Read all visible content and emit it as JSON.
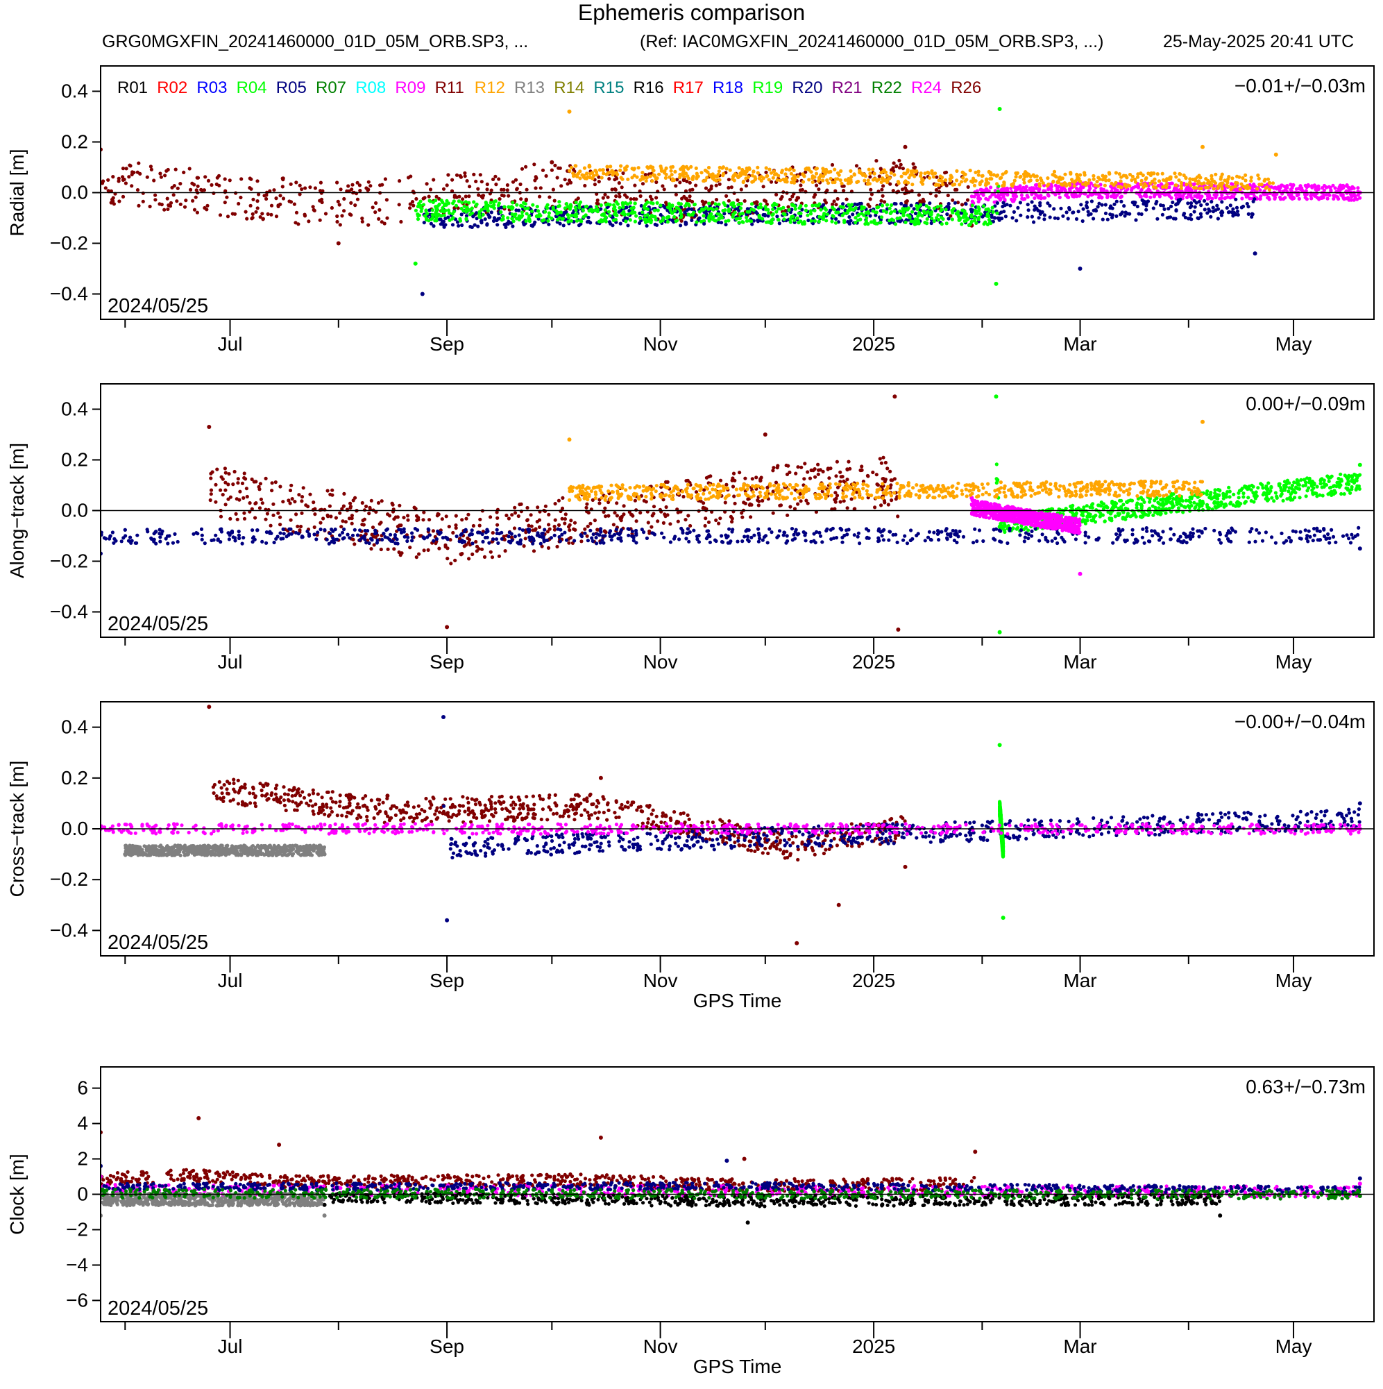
{
  "header": {
    "title": "Ephemeris comparison",
    "subtitle_left": "GRG0MGXFIN_20241460000_01D_05M_ORB.SP3, ...",
    "subtitle_right": "(Ref: IAC0MGXFIN_20241460000_01D_05M_ORB.SP3, ...)",
    "timestamp": "25-May-2025 20:41 UTC"
  },
  "legend": [
    {
      "name": "R01",
      "color": "#000000"
    },
    {
      "name": "R02",
      "color": "#ff0000"
    },
    {
      "name": "R03",
      "color": "#0000ff"
    },
    {
      "name": "R04",
      "color": "#00ff00"
    },
    {
      "name": "R05",
      "color": "#000080"
    },
    {
      "name": "R07",
      "color": "#008000"
    },
    {
      "name": "R08",
      "color": "#00ffff"
    },
    {
      "name": "R09",
      "color": "#ff00ff"
    },
    {
      "name": "R11",
      "color": "#800000"
    },
    {
      "name": "R12",
      "color": "#ffa500"
    },
    {
      "name": "R13",
      "color": "#808080"
    },
    {
      "name": "R14",
      "color": "#808000"
    },
    {
      "name": "R15",
      "color": "#008080"
    },
    {
      "name": "R16",
      "color": "#000000"
    },
    {
      "name": "R17",
      "color": "#ff0000"
    },
    {
      "name": "R18",
      "color": "#0000ff"
    },
    {
      "name": "R19",
      "color": "#00ff00"
    },
    {
      "name": "R20",
      "color": "#000080"
    },
    {
      "name": "R21",
      "color": "#800080"
    },
    {
      "name": "R22",
      "color": "#008000"
    },
    {
      "name": "R24",
      "color": "#ff00ff"
    },
    {
      "name": "R26",
      "color": "#800000"
    }
  ],
  "chart_data": [
    {
      "type": "scatter",
      "ylabel": "Radial [m]",
      "xlabel": "",
      "ylim": [
        -0.5,
        0.5
      ],
      "yticks": [
        -0.4,
        -0.2,
        0.0,
        0.2,
        0.4
      ],
      "ytick_labels": [
        "−0.4",
        "−0.2",
        "0.0",
        "0.2",
        "0.4"
      ],
      "xlim": [
        "2024-05-25",
        "2025-05-24"
      ],
      "xtick_labels": [
        "Jul",
        "Sep",
        "Nov",
        "2025",
        "Mar",
        "May"
      ],
      "stat": "−0.01+/−0.03m",
      "start_date": "2024/05/25",
      "grid": false,
      "series": [
        {
          "name": "R11",
          "color": "#800000",
          "spread": 0.09,
          "offset": 0.0,
          "x": [
            "2024-05-25",
            "2024-08-01",
            "2024-10-01",
            "2024-11-05",
            "2025-01-10",
            "2025-01-29"
          ],
          "y": [
            0.17,
            -0.2,
            0.12,
            -0.1,
            0.18,
            -0.13
          ]
        },
        {
          "name": "R09",
          "color": "#ff00ff",
          "spread": 0.03,
          "offset": 0.0,
          "x": [
            "2025-01-29",
            "2025-03-01",
            "2025-05-20"
          ],
          "y": [
            -0.05,
            0.04,
            0.0
          ]
        },
        {
          "name": "R05",
          "color": "#000080",
          "spread": 0.04,
          "offset": 0.0,
          "x": [
            "2024-08-25",
            "2025-03-01",
            "2025-04-20"
          ],
          "y": [
            -0.4,
            -0.3,
            -0.24
          ]
        },
        {
          "name": "R04",
          "color": "#00ff00",
          "spread": 0.04,
          "offset": 0.0,
          "x": [
            "2024-08-23",
            "2025-02-05",
            "2025-02-06"
          ],
          "y": [
            -0.28,
            -0.36,
            0.33
          ]
        },
        {
          "name": "R12",
          "color": "#ffa500",
          "spread": 0.03,
          "offset": 0.0,
          "x": [
            "2024-10-06",
            "2025-04-05",
            "2025-04-26"
          ],
          "y": [
            0.32,
            0.18,
            0.15
          ]
        }
      ]
    },
    {
      "type": "scatter",
      "ylabel": "Along−track [m]",
      "xlabel": "",
      "ylim": [
        -0.5,
        0.5
      ],
      "yticks": [
        -0.4,
        -0.2,
        0.0,
        0.2,
        0.4
      ],
      "ytick_labels": [
        "−0.4",
        "−0.2",
        "0.0",
        "0.2",
        "0.4"
      ],
      "xlim": [
        "2024-05-25",
        "2025-05-24"
      ],
      "xtick_labels": [
        "Jul",
        "Sep",
        "Nov",
        "2025",
        "Mar",
        "May"
      ],
      "stat": "0.00+/−0.09m",
      "start_date": "2024/05/25",
      "grid": false,
      "series": [
        {
          "name": "R11",
          "color": "#800000",
          "spread": 0.1,
          "offset": 0.0,
          "x": [
            "2024-06-25",
            "2024-09-01",
            "2024-12-01",
            "2025-01-07",
            "2025-01-08"
          ],
          "y": [
            0.33,
            -0.46,
            0.3,
            0.45,
            -0.47
          ]
        },
        {
          "name": "R19",
          "color": "#00ff00",
          "spread": 0.04,
          "offset": 0.09,
          "x": [
            "2025-02-05",
            "2025-02-06",
            "2025-05-20"
          ],
          "y": [
            0.45,
            -0.48,
            0.18
          ]
        },
        {
          "name": "R20",
          "color": "#000080",
          "spread": 0.03,
          "offset": -0.08,
          "x": [
            "2024-05-25",
            "2025-05-20"
          ],
          "y": [
            -0.17,
            -0.15
          ]
        },
        {
          "name": "R09",
          "color": "#ff00ff",
          "spread": 0.03,
          "offset": 0.0,
          "x": [
            "2025-01-29",
            "2025-03-01"
          ],
          "y": [
            0.05,
            -0.25
          ]
        },
        {
          "name": "R12",
          "color": "#ffa500",
          "spread": 0.03,
          "offset": 0.0,
          "x": [
            "2024-10-06",
            "2025-04-05"
          ],
          "y": [
            0.28,
            0.35
          ]
        }
      ]
    },
    {
      "type": "scatter",
      "ylabel": "Cross−track [m]",
      "xlabel": "GPS Time",
      "ylim": [
        -0.5,
        0.5
      ],
      "yticks": [
        -0.4,
        -0.2,
        0.0,
        0.2,
        0.4
      ],
      "ytick_labels": [
        "−0.4",
        "−0.2",
        "0.0",
        "0.2",
        "0.4"
      ],
      "xlim": [
        "2024-05-25",
        "2025-05-24"
      ],
      "xtick_labels": [
        "Jul",
        "Sep",
        "Nov",
        "2025",
        "Mar",
        "May"
      ],
      "stat": "−0.00+/−0.04m",
      "start_date": "2024/05/25",
      "grid": false,
      "series": [
        {
          "name": "R11",
          "color": "#800000",
          "spread": 0.05,
          "offset": 0.05,
          "x": [
            "2024-06-25",
            "2024-08-15",
            "2024-10-15",
            "2024-12-10",
            "2024-12-22",
            "2025-01-10"
          ],
          "y": [
            0.48,
            0.13,
            0.2,
            -0.45,
            -0.3,
            -0.15
          ]
        },
        {
          "name": "R05",
          "color": "#000080",
          "spread": 0.04,
          "offset": 0.02,
          "x": [
            "2024-08-31",
            "2024-09-01",
            "2025-05-20"
          ],
          "y": [
            0.44,
            -0.36,
            0.1
          ]
        },
        {
          "name": "R04",
          "color": "#00ff00",
          "spread": 0.03,
          "offset": 0.0,
          "x": [
            "2025-02-06",
            "2025-02-07"
          ],
          "y": [
            0.33,
            -0.35
          ]
        },
        {
          "name": "R13",
          "color": "#808080",
          "spread": 0.02,
          "offset": -0.08,
          "x": [
            "2024-06-01",
            "2024-07-28"
          ],
          "y": [
            -0.1,
            -0.1
          ]
        },
        {
          "name": "R09",
          "color": "#ff00ff",
          "spread": 0.02,
          "offset": 0.0,
          "x": [
            "2024-05-25",
            "2025-05-20"
          ],
          "y": [
            0.0,
            0.0
          ]
        }
      ]
    },
    {
      "type": "scatter",
      "ylabel": "Clock [m]",
      "xlabel": "GPS Time",
      "ylim": [
        -7.2,
        7.2
      ],
      "yticks": [
        -6,
        -4,
        -2,
        0,
        2,
        4,
        6
      ],
      "ytick_labels": [
        "−6",
        "−4",
        "−2",
        "0",
        "2",
        "4",
        "6"
      ],
      "xlim": [
        "2024-05-25",
        "2025-05-24"
      ],
      "xtick_labels": [
        "Jul",
        "Sep",
        "Nov",
        "2025",
        "Mar",
        "May"
      ],
      "stat": "0.63+/−0.73m",
      "start_date": "2024/05/25",
      "grid": false,
      "series": [
        {
          "name": "R11",
          "color": "#800000",
          "spread": 0.35,
          "offset": 0.0,
          "x": [
            "2024-05-25",
            "2024-06-22",
            "2024-07-15",
            "2024-10-15",
            "2024-11-25",
            "2025-01-30"
          ],
          "y": [
            3.5,
            4.3,
            2.8,
            3.2,
            2.0,
            2.4
          ]
        },
        {
          "name": "R09",
          "color": "#ff00ff",
          "spread": 0.3,
          "offset": 0.0,
          "x": [
            "2024-05-25",
            "2025-05-20"
          ],
          "y": [
            1.0,
            0.6
          ]
        },
        {
          "name": "R20",
          "color": "#000080",
          "spread": 0.2,
          "offset": 0.0,
          "x": [
            "2024-05-25",
            "2024-11-20",
            "2025-05-20"
          ],
          "y": [
            1.6,
            1.9,
            0.9
          ]
        },
        {
          "name": "R01",
          "color": "#000000",
          "spread": 0.3,
          "offset": 0.0,
          "x": [
            "2024-07-28",
            "2024-11-26",
            "2025-04-10"
          ],
          "y": [
            -0.6,
            -1.6,
            -1.2
          ]
        },
        {
          "name": "R13",
          "color": "#808080",
          "spread": 0.35,
          "offset": 0.0,
          "x": [
            "2024-05-25",
            "2024-07-28"
          ],
          "y": [
            -1.2,
            -1.2
          ]
        },
        {
          "name": "R07",
          "color": "#008000",
          "spread": 0.25,
          "offset": 0.0,
          "x": [
            "2024-05-25",
            "2025-05-20"
          ],
          "y": [
            0.2,
            -0.1
          ]
        }
      ]
    }
  ]
}
